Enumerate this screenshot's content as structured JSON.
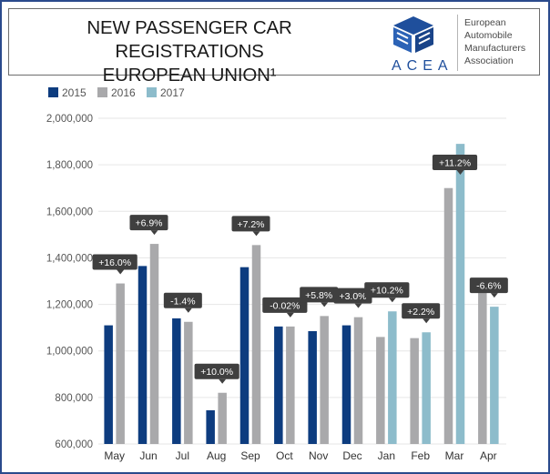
{
  "header": {
    "title_lines": [
      "NEW PASSENGER CAR REGISTRATIONS",
      "EUROPEAN UNION¹"
    ],
    "logo_text": "ACEA",
    "org_lines": [
      "European",
      "Automobile",
      "Manufacturers",
      "Association"
    ]
  },
  "colors": {
    "s2015": "#0d3c7f",
    "s2016": "#a9a9ab",
    "s2017": "#8dbccb",
    "label_bg": "#3f3f3f",
    "grid": "#e6e6e6",
    "frame": "#2b4a8c"
  },
  "chart_data": {
    "type": "bar",
    "title": "NEW PASSENGER CAR REGISTRATIONS EUROPEAN UNION¹",
    "categories": [
      "May",
      "Jun",
      "Jul",
      "Aug",
      "Sep",
      "Oct",
      "Nov",
      "Dec",
      "Jan",
      "Feb",
      "Mar",
      "Apr"
    ],
    "series": [
      {
        "name": "2015",
        "values": [
          1110000,
          1365000,
          1140000,
          745000,
          1360000,
          1105000,
          1085000,
          1110000,
          null,
          null,
          null,
          null
        ]
      },
      {
        "name": "2016",
        "values": [
          1290000,
          1460000,
          1125000,
          820000,
          1455000,
          1105000,
          1150000,
          1145000,
          1060000,
          1055000,
          1700000,
          1270000
        ]
      },
      {
        "name": "2017",
        "values": [
          null,
          null,
          null,
          null,
          null,
          null,
          null,
          null,
          1170000,
          1080000,
          1890000,
          1190000
        ]
      }
    ],
    "change_labels": [
      "+16.0%",
      "+6.9%",
      "-1.4%",
      "+10.0%",
      "+7.2%",
      "-0.02%",
      "+5.8%",
      "+3.0%",
      "+10.2%",
      "+2.2%",
      "+11.2%",
      "-6.6%"
    ],
    "y_ticks": [
      "600,000",
      "800,000",
      "1,000,000",
      "1,200,000",
      "1,400,000",
      "1,600,000",
      "1,800,000",
      "2,000,000"
    ],
    "ylim": [
      600000,
      2000000
    ],
    "legend": "top-left",
    "grid": true
  }
}
